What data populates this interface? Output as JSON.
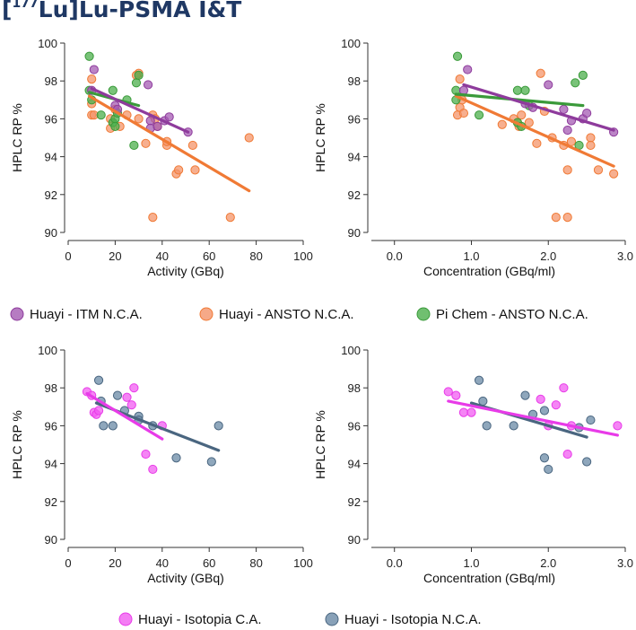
{
  "title": {
    "prefix": "[",
    "sup": "177",
    "main": "Lu]Lu-PSMA I&T"
  },
  "legend_top": [
    {
      "name": "Huayi - ITM N.C.A.",
      "color": "#8e3b9c",
      "fill": "#a45bb3"
    },
    {
      "name": "Huayi - ANSTO N.C.A.",
      "color": "#f07a35",
      "fill": "#f4946a"
    },
    {
      "name": "Pi Chem - ANSTO N.C.A.",
      "color": "#3a9a3a",
      "fill": "#4caf4c"
    }
  ],
  "legend_bottom": [
    {
      "name": "Huayi - Isotopia C.A.",
      "color": "#e83be8",
      "fill": "#f15cf1"
    },
    {
      "name": "Huayi - Isotopia N.C.A.",
      "color": "#4a6680",
      "fill": "#6a8aa6"
    }
  ],
  "chart_data": [
    {
      "type": "scatter",
      "panel": "top-left",
      "title": "",
      "xlabel": "Activity (GBq)",
      "ylabel": "HPLC RP %",
      "xlim": [
        0,
        100
      ],
      "ylim": [
        90,
        100
      ],
      "xticks": [
        0,
        20,
        40,
        60,
        80,
        100
      ],
      "yticks": [
        90,
        92,
        94,
        96,
        98,
        100
      ],
      "series": [
        {
          "name": "Huayi - ANSTO N.C.A.",
          "points": [
            [
              10,
              96.8
            ],
            [
              10,
              96.2
            ],
            [
              11,
              96.2
            ],
            [
              18,
              96.0
            ],
            [
              18,
              95.5
            ],
            [
              20,
              96.5
            ],
            [
              22,
              95.6
            ],
            [
              25,
              96.2
            ],
            [
              30,
              96.0
            ],
            [
              33,
              94.7
            ],
            [
              36,
              96.2
            ],
            [
              36,
              90.8
            ],
            [
              37,
              96.0
            ],
            [
              38,
              95.6
            ],
            [
              42,
              94.6
            ],
            [
              42,
              94.8
            ],
            [
              46,
              93.1
            ],
            [
              47,
              93.3
            ],
            [
              53,
              94.6
            ],
            [
              54,
              93.3
            ],
            [
              69,
              90.8
            ],
            [
              77,
              95.0
            ],
            [
              10,
              98.1
            ],
            [
              30,
              98.4
            ],
            [
              29,
              98.3
            ]
          ],
          "fit": [
            [
              9,
              97.2
            ],
            [
              77,
              92.2
            ]
          ]
        },
        {
          "name": "Pi Chem - ANSTO N.C.A.",
          "points": [
            [
              9,
              99.3
            ],
            [
              9,
              97.5
            ],
            [
              10,
              97.0
            ],
            [
              14,
              96.2
            ],
            [
              19,
              97.5
            ],
            [
              19,
              95.8
            ],
            [
              20,
              96.0
            ],
            [
              20,
              95.6
            ],
            [
              21,
              96.3
            ],
            [
              25,
              97.0
            ],
            [
              28,
              94.6
            ],
            [
              29,
              97.9
            ],
            [
              30,
              98.3
            ]
          ],
          "fit": [
            [
              9,
              97.4
            ],
            [
              30,
              96.7
            ]
          ]
        },
        {
          "name": "Huayi - ITM N.C.A.",
          "points": [
            [
              11,
              98.6
            ],
            [
              10,
              97.5
            ],
            [
              20,
              96.7
            ],
            [
              21,
              96.5
            ],
            [
              34,
              97.8
            ],
            [
              35,
              95.9
            ],
            [
              35,
              95.5
            ],
            [
              38,
              95.6
            ],
            [
              41,
              95.9
            ],
            [
              43,
              96.1
            ],
            [
              51,
              95.3
            ]
          ],
          "fit": [
            [
              10,
              97.6
            ],
            [
              51,
              95.3
            ]
          ]
        }
      ]
    },
    {
      "type": "scatter",
      "panel": "top-right",
      "title": "",
      "xlabel": "Concentration (GBq/ml)",
      "ylabel": "HPLC RP %",
      "xlim": [
        -0.3,
        3.0
      ],
      "ylim": [
        90,
        100
      ],
      "xticks": [
        0.0,
        1.0,
        2.0,
        3.0
      ],
      "xticklabels": [
        "0.0",
        "1.0",
        "2.0",
        "3.0"
      ],
      "yticks": [
        90,
        92,
        94,
        96,
        98,
        100
      ],
      "series": [
        {
          "name": "Huayi - ANSTO N.C.A.",
          "points": [
            [
              0.82,
              96.2
            ],
            [
              0.85,
              96.6
            ],
            [
              0.9,
              96.3
            ],
            [
              0.88,
              97.0
            ],
            [
              1.4,
              95.7
            ],
            [
              1.55,
              96.0
            ],
            [
              1.6,
              95.8
            ],
            [
              1.62,
              95.6
            ],
            [
              1.65,
              96.2
            ],
            [
              1.75,
              95.8
            ],
            [
              1.85,
              94.7
            ],
            [
              1.9,
              98.4
            ],
            [
              1.95,
              96.4
            ],
            [
              2.05,
              95.0
            ],
            [
              2.1,
              90.8
            ],
            [
              2.2,
              94.6
            ],
            [
              2.25,
              93.3
            ],
            [
              2.25,
              90.8
            ],
            [
              2.3,
              94.8
            ],
            [
              2.55,
              95.0
            ],
            [
              2.55,
              94.6
            ],
            [
              2.65,
              93.3
            ],
            [
              2.85,
              93.1
            ],
            [
              0.85,
              98.1
            ]
          ],
          "fit": [
            [
              0.8,
              97.2
            ],
            [
              2.85,
              93.5
            ]
          ]
        },
        {
          "name": "Pi Chem - ANSTO N.C.A.",
          "points": [
            [
              0.82,
              99.3
            ],
            [
              0.8,
              97.5
            ],
            [
              0.8,
              97.0
            ],
            [
              1.1,
              96.2
            ],
            [
              1.6,
              97.5
            ],
            [
              1.6,
              95.8
            ],
            [
              1.65,
              95.6
            ],
            [
              1.7,
              97.5
            ],
            [
              1.75,
              96.7
            ],
            [
              2.35,
              97.9
            ],
            [
              2.4,
              94.6
            ],
            [
              2.45,
              98.3
            ]
          ],
          "fit": [
            [
              0.8,
              97.3
            ],
            [
              2.45,
              96.7
            ]
          ]
        },
        {
          "name": "Huayi - ITM N.C.A.",
          "points": [
            [
              0.95,
              98.6
            ],
            [
              0.9,
              97.5
            ],
            [
              1.7,
              96.8
            ],
            [
              1.8,
              96.6
            ],
            [
              2.0,
              97.8
            ],
            [
              2.2,
              96.5
            ],
            [
              2.25,
              95.4
            ],
            [
              2.3,
              95.9
            ],
            [
              2.45,
              96.0
            ],
            [
              2.5,
              96.3
            ],
            [
              2.85,
              95.3
            ]
          ],
          "fit": [
            [
              0.9,
              97.8
            ],
            [
              2.85,
              95.4
            ]
          ]
        }
      ]
    },
    {
      "type": "scatter",
      "panel": "bottom-left",
      "title": "",
      "xlabel": "Activity (GBq)",
      "ylabel": "HPLC RP %",
      "xlim": [
        0,
        100
      ],
      "ylim": [
        90,
        100
      ],
      "xticks": [
        0,
        20,
        40,
        60,
        80,
        100
      ],
      "yticks": [
        90,
        92,
        94,
        96,
        98,
        100
      ],
      "series": [
        {
          "name": "Huayi - Isotopia N.C.A.",
          "points": [
            [
              13,
              98.4
            ],
            [
              14,
              97.3
            ],
            [
              15,
              96.0
            ],
            [
              19,
              96.0
            ],
            [
              21,
              97.6
            ],
            [
              24,
              96.8
            ],
            [
              30,
              96.5
            ],
            [
              30,
              96.3
            ],
            [
              36,
              96.0
            ],
            [
              46,
              94.3
            ],
            [
              61,
              94.1
            ],
            [
              64,
              96.0
            ]
          ],
          "fit": [
            [
              12,
              97.2
            ],
            [
              64,
              94.7
            ]
          ]
        },
        {
          "name": "Huayi - Isotopia C.A.",
          "points": [
            [
              8,
              97.8
            ],
            [
              10,
              97.6
            ],
            [
              11,
              96.7
            ],
            [
              12,
              96.6
            ],
            [
              13,
              96.8
            ],
            [
              25,
              97.5
            ],
            [
              27,
              97.1
            ],
            [
              28,
              98.0
            ],
            [
              33,
              94.5
            ],
            [
              36,
              93.7
            ],
            [
              40,
              96.0
            ]
          ],
          "fit": [
            [
              8,
              97.7
            ],
            [
              40,
              95.3
            ]
          ]
        }
      ]
    },
    {
      "type": "scatter",
      "panel": "bottom-right",
      "title": "",
      "xlabel": "Concentration (GBq/ml)",
      "ylabel": "HPLC RP %",
      "xlim": [
        -0.3,
        3.0
      ],
      "ylim": [
        90,
        100
      ],
      "xticks": [
        0.0,
        1.0,
        2.0,
        3.0
      ],
      "xticklabels": [
        "0.0",
        "1.0",
        "2.0",
        "3.0"
      ],
      "yticks": [
        90,
        92,
        94,
        96,
        98,
        100
      ],
      "series": [
        {
          "name": "Huayi - Isotopia N.C.A.",
          "points": [
            [
              1.1,
              98.4
            ],
            [
              1.15,
              97.3
            ],
            [
              1.2,
              96.0
            ],
            [
              1.55,
              96.0
            ],
            [
              1.7,
              97.6
            ],
            [
              1.8,
              96.6
            ],
            [
              1.95,
              96.8
            ],
            [
              1.95,
              94.3
            ],
            [
              2.0,
              93.7
            ],
            [
              2.4,
              95.9
            ],
            [
              2.5,
              94.1
            ],
            [
              2.55,
              96.3
            ]
          ],
          "fit": [
            [
              1.0,
              97.2
            ],
            [
              2.5,
              95.4
            ]
          ]
        },
        {
          "name": "Huayi - Isotopia C.A.",
          "points": [
            [
              0.7,
              97.8
            ],
            [
              0.8,
              97.6
            ],
            [
              0.9,
              96.7
            ],
            [
              1.0,
              96.7
            ],
            [
              1.9,
              97.4
            ],
            [
              2.0,
              96.0
            ],
            [
              2.1,
              97.1
            ],
            [
              2.2,
              98.0
            ],
            [
              2.25,
              94.5
            ],
            [
              2.3,
              96.0
            ],
            [
              2.9,
              96.0
            ]
          ],
          "fit": [
            [
              0.7,
              97.3
            ],
            [
              2.9,
              95.5
            ]
          ]
        }
      ]
    }
  ]
}
